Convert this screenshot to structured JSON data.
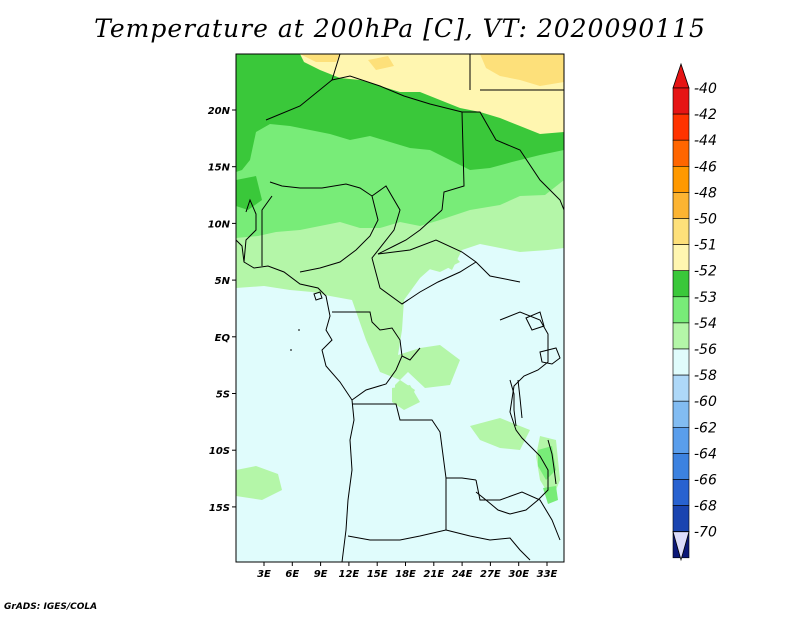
{
  "title": "Temperature at 200hPa [C], VT: 2020090115",
  "credit": "GrADS: IGES/COLA",
  "map": {
    "lat_labels": [
      "20N",
      "15N",
      "10N",
      "5N",
      "EQ",
      "5S",
      "10S",
      "15S"
    ],
    "lon_labels": [
      "3E",
      "6E",
      "9E",
      "12E",
      "15E",
      "18E",
      "21E",
      "24E",
      "27E",
      "30E",
      "33E"
    ],
    "background_color": "#e0fcfc"
  },
  "colorbar": {
    "levels": [
      {
        "label": "-40",
        "color": "#e61414"
      },
      {
        "label": "-42",
        "color": "#ff3300"
      },
      {
        "label": "-44",
        "color": "#ff6600"
      },
      {
        "label": "-46",
        "color": "#ff9900"
      },
      {
        "label": "-48",
        "color": "#fcb432"
      },
      {
        "label": "-50",
        "color": "#fde07a"
      },
      {
        "label": "-51",
        "color": "#fff6b0"
      },
      {
        "label": "-52",
        "color": "#3ac83a"
      },
      {
        "label": "-53",
        "color": "#78ec78"
      },
      {
        "label": "-54",
        "color": "#b4f6a8"
      },
      {
        "label": "-56",
        "color": "#e0fcfc"
      },
      {
        "label": "-58",
        "color": "#aed8f8"
      },
      {
        "label": "-60",
        "color": "#82bcf2"
      },
      {
        "label": "-62",
        "color": "#5a9eec"
      },
      {
        "label": "-64",
        "color": "#3c82e0"
      },
      {
        "label": "-66",
        "color": "#2862d0"
      },
      {
        "label": "-68",
        "color": "#1a44b0"
      },
      {
        "label": "-70",
        "color": "#0c1878"
      }
    ],
    "top_arrow_color": "#e61414",
    "bottom_arrow_color": "#dcdcfa"
  }
}
